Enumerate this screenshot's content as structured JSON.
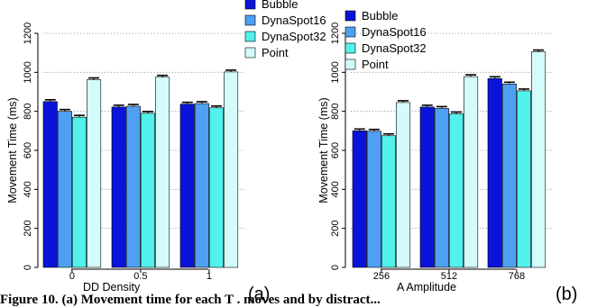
{
  "colors": {
    "Bubble": "#0a14d8",
    "DynaSpot16": "#4f9ff2",
    "DynaSpot32": "#52f1ec",
    "Point": "#d4fbfb"
  },
  "chart_data": [
    {
      "type": "bar",
      "panel_label": "(a)",
      "xlabel": "DD  Density",
      "ylabel": "Movement Time (ms)",
      "categories": [
        "0",
        "0.5",
        "1"
      ],
      "ylim": [
        0,
        1200
      ],
      "yticks": [
        0,
        200,
        400,
        600,
        800,
        1000,
        1200
      ],
      "ytick_labels": [
        "0",
        "200",
        "400",
        "600",
        "800",
        "1000",
        "1200"
      ],
      "grid": true,
      "legend": "top",
      "series": [
        {
          "name": "Bubble",
          "values": [
            850,
            822,
            837
          ]
        },
        {
          "name": "DynaSpot16",
          "values": [
            800,
            826,
            840
          ]
        },
        {
          "name": "DynaSpot32",
          "values": [
            770,
            790,
            818
          ]
        },
        {
          "name": "Point",
          "values": [
            962,
            975,
            1002
          ]
        }
      ]
    },
    {
      "type": "bar",
      "panel_label": "(b)",
      "xlabel": "A  Amplitude",
      "ylabel": "Movement Time (ms)",
      "categories": [
        "256",
        "512",
        "768"
      ],
      "ylim": [
        0,
        1200
      ],
      "yticks": [
        0,
        200,
        400,
        600,
        800,
        1000,
        1200
      ],
      "ytick_labels": [
        "0",
        "200",
        "400",
        "600",
        "800",
        "1000",
        "1200"
      ],
      "grid": true,
      "legend": "top-left",
      "series": [
        {
          "name": "Bubble",
          "values": [
            700,
            822,
            968
          ]
        },
        {
          "name": "DynaSpot16",
          "values": [
            698,
            815,
            940
          ]
        },
        {
          "name": "DynaSpot32",
          "values": [
            675,
            787,
            905
          ]
        },
        {
          "name": "Point",
          "values": [
            845,
            978,
            1105
          ]
        }
      ]
    }
  ],
  "caption": "Figure 10.  (a) Movement time for each  T  . moves and by distract..."
}
